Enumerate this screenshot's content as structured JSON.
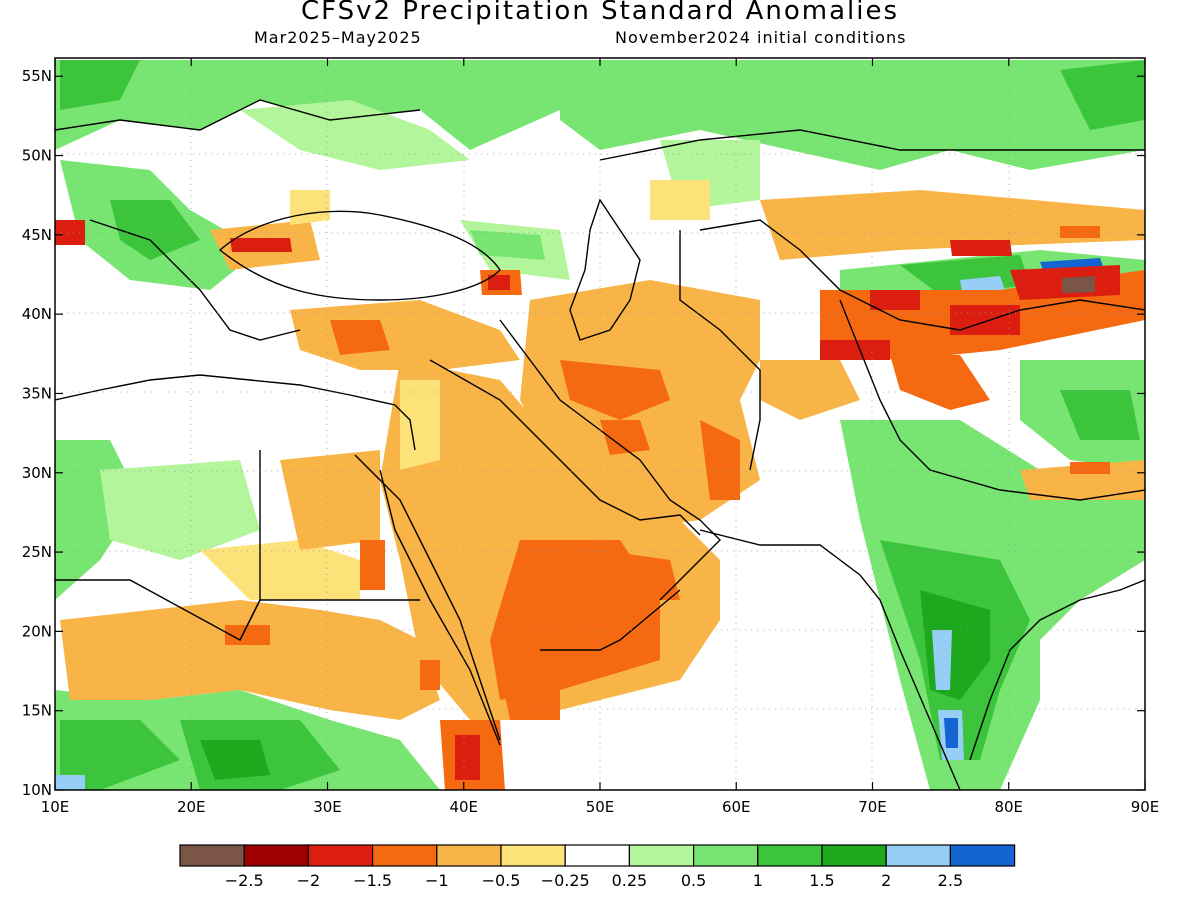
{
  "title": "CFSv2 Precipitation Standard Anomalies",
  "period": "Mar2025–May2025",
  "initial_conditions": "November2024 initial conditions",
  "lon_labels": [
    "10E",
    "20E",
    "30E",
    "40E",
    "50E",
    "60E",
    "70E",
    "80E",
    "90E"
  ],
  "lat_labels": [
    "55N",
    "50N",
    "45N",
    "40N",
    "35N",
    "30N",
    "25N",
    "20N",
    "15N",
    "10N"
  ],
  "colorbar": {
    "colors": [
      "#7a5548",
      "#9e0000",
      "#dc1e10",
      "#f56a10",
      "#f9b447",
      "#fde27a",
      "#ffffff",
      "#b2f59a",
      "#78e572",
      "#3cc43c",
      "#1ea81e",
      "#96cef5",
      "#1464d2"
    ],
    "labels": [
      "−2.5",
      "−2",
      "−1.5",
      "−1",
      "−0.5",
      "−0.25",
      "0.25",
      "0.5",
      "1",
      "1.5",
      "2",
      "2.5"
    ]
  }
}
